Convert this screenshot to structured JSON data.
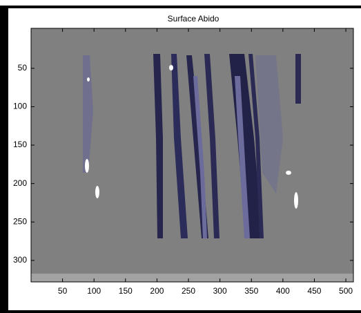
{
  "chart_data": {
    "type": "image",
    "title": "Surface Abido",
    "xlim": [
      0,
      512
    ],
    "xticks": [
      50,
      100,
      150,
      200,
      250,
      300,
      350,
      400,
      450,
      500
    ],
    "ylim": [
      -2,
      328
    ],
    "yticks": [
      50,
      100,
      150,
      200,
      250,
      300
    ],
    "ydir": "reverse",
    "background": "#808080"
  }
}
